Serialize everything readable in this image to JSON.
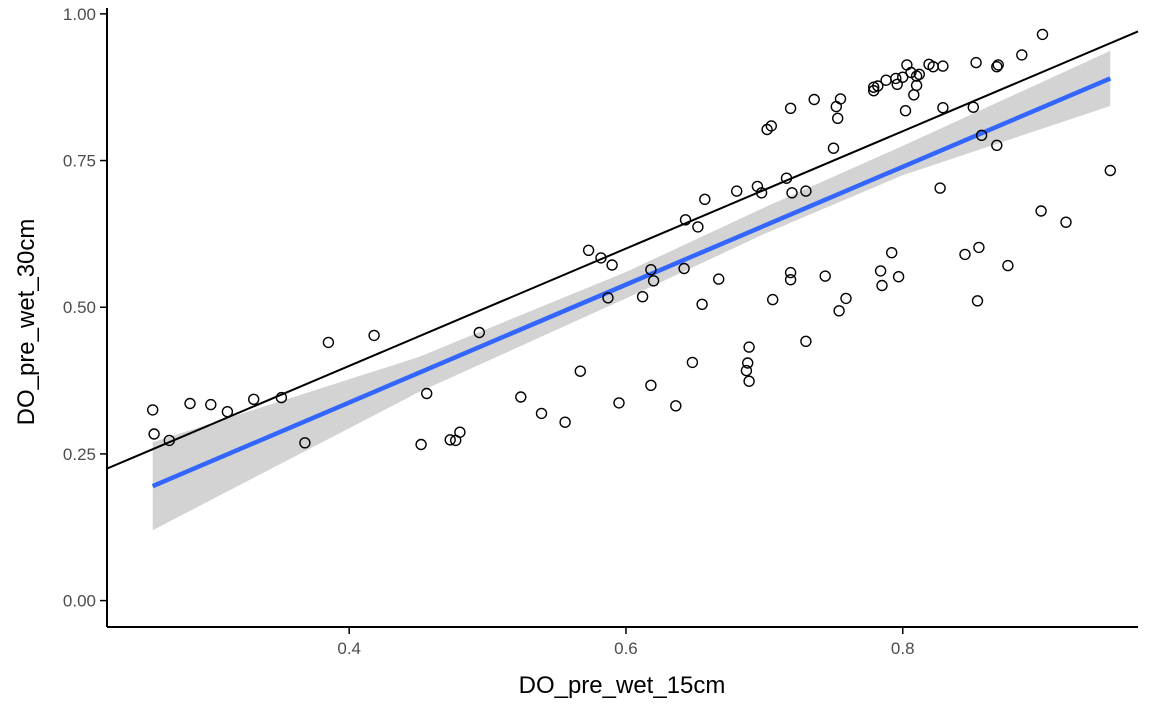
{
  "chart_data": {
    "type": "scatter",
    "title": "",
    "xlabel": "DO_pre_wet_15cm",
    "ylabel": "DO_pre_wet_30cm",
    "xlim": [
      0.225,
      0.97
    ],
    "ylim": [
      -0.045,
      1.01
    ],
    "x_ticks": [
      0.4,
      0.6,
      0.8
    ],
    "x_tick_labels": [
      "0.4",
      "0.6",
      "0.8"
    ],
    "y_ticks": [
      0.0,
      0.25,
      0.5,
      0.75,
      1.0
    ],
    "y_tick_labels": [
      "0.00",
      "0.25",
      "0.50",
      "0.75",
      "1.00"
    ],
    "grid": false,
    "colors": {
      "points": "#000000",
      "fit_line": "#3366FF",
      "confidence_band": "#D3D3D3",
      "reference_line": "#000000",
      "axis": "#000000",
      "tick_label": "#4D4D4D"
    },
    "reference_line": {
      "name": "",
      "slope": 1,
      "intercept": 0
    },
    "fit_line": {
      "name": "",
      "x": [
        0.258,
        0.95
      ],
      "y": [
        0.195,
        0.89
      ]
    },
    "confidence_band": {
      "x": [
        0.258,
        0.45,
        0.6,
        0.7,
        0.8,
        0.95
      ],
      "lower": [
        0.12,
        0.355,
        0.515,
        0.625,
        0.725,
        0.843
      ],
      "upper": [
        0.27,
        0.415,
        0.56,
        0.67,
        0.775,
        0.937
      ]
    },
    "points": [
      [
        0.258,
        0.325
      ],
      [
        0.259,
        0.284
      ],
      [
        0.27,
        0.273
      ],
      [
        0.285,
        0.336
      ],
      [
        0.3,
        0.334
      ],
      [
        0.312,
        0.322
      ],
      [
        0.331,
        0.343
      ],
      [
        0.351,
        0.346
      ],
      [
        0.368,
        0.269
      ],
      [
        0.385,
        0.44
      ],
      [
        0.418,
        0.452
      ],
      [
        0.452,
        0.266
      ],
      [
        0.456,
        0.353
      ],
      [
        0.473,
        0.274
      ],
      [
        0.477,
        0.273
      ],
      [
        0.48,
        0.287
      ],
      [
        0.494,
        0.457
      ],
      [
        0.524,
        0.347
      ],
      [
        0.539,
        0.319
      ],
      [
        0.556,
        0.304
      ],
      [
        0.567,
        0.391
      ],
      [
        0.573,
        0.597
      ],
      [
        0.582,
        0.584
      ],
      [
        0.587,
        0.516
      ],
      [
        0.59,
        0.572
      ],
      [
        0.595,
        0.337
      ],
      [
        0.612,
        0.518
      ],
      [
        0.618,
        0.564
      ],
      [
        0.618,
        0.367
      ],
      [
        0.62,
        0.545
      ],
      [
        0.636,
        0.332
      ],
      [
        0.642,
        0.566
      ],
      [
        0.643,
        0.649
      ],
      [
        0.648,
        0.406
      ],
      [
        0.652,
        0.637
      ],
      [
        0.655,
        0.505
      ],
      [
        0.657,
        0.684
      ],
      [
        0.667,
        0.548
      ],
      [
        0.68,
        0.698
      ],
      [
        0.687,
        0.392
      ],
      [
        0.688,
        0.405
      ],
      [
        0.689,
        0.374
      ],
      [
        0.689,
        0.432
      ],
      [
        0.695,
        0.706
      ],
      [
        0.698,
        0.695
      ],
      [
        0.702,
        0.803
      ],
      [
        0.705,
        0.809
      ],
      [
        0.706,
        0.513
      ],
      [
        0.716,
        0.72
      ],
      [
        0.719,
        0.839
      ],
      [
        0.719,
        0.559
      ],
      [
        0.719,
        0.547
      ],
      [
        0.72,
        0.695
      ],
      [
        0.73,
        0.698
      ],
      [
        0.73,
        0.442
      ],
      [
        0.736,
        0.854
      ],
      [
        0.744,
        0.553
      ],
      [
        0.75,
        0.771
      ],
      [
        0.752,
        0.842
      ],
      [
        0.753,
        0.822
      ],
      [
        0.754,
        0.494
      ],
      [
        0.755,
        0.855
      ],
      [
        0.759,
        0.515
      ],
      [
        0.779,
        0.875
      ],
      [
        0.779,
        0.869
      ],
      [
        0.782,
        0.877
      ],
      [
        0.784,
        0.562
      ],
      [
        0.785,
        0.537
      ],
      [
        0.788,
        0.887
      ],
      [
        0.792,
        0.593
      ],
      [
        0.795,
        0.89
      ],
      [
        0.796,
        0.88
      ],
      [
        0.797,
        0.552
      ],
      [
        0.8,
        0.892
      ],
      [
        0.802,
        0.835
      ],
      [
        0.803,
        0.913
      ],
      [
        0.806,
        0.9
      ],
      [
        0.808,
        0.862
      ],
      [
        0.81,
        0.878
      ],
      [
        0.81,
        0.894
      ],
      [
        0.812,
        0.897
      ],
      [
        0.819,
        0.914
      ],
      [
        0.822,
        0.91
      ],
      [
        0.827,
        0.703
      ],
      [
        0.829,
        0.84
      ],
      [
        0.829,
        0.911
      ],
      [
        0.845,
        0.59
      ],
      [
        0.851,
        0.841
      ],
      [
        0.853,
        0.917
      ],
      [
        0.854,
        0.511
      ],
      [
        0.855,
        0.602
      ],
      [
        0.857,
        0.793
      ],
      [
        0.868,
        0.776
      ],
      [
        0.868,
        0.91
      ],
      [
        0.869,
        0.913
      ],
      [
        0.876,
        0.571
      ],
      [
        0.886,
        0.93
      ],
      [
        0.9,
        0.664
      ],
      [
        0.901,
        0.965
      ],
      [
        0.918,
        0.645
      ],
      [
        0.95,
        0.733
      ]
    ]
  }
}
